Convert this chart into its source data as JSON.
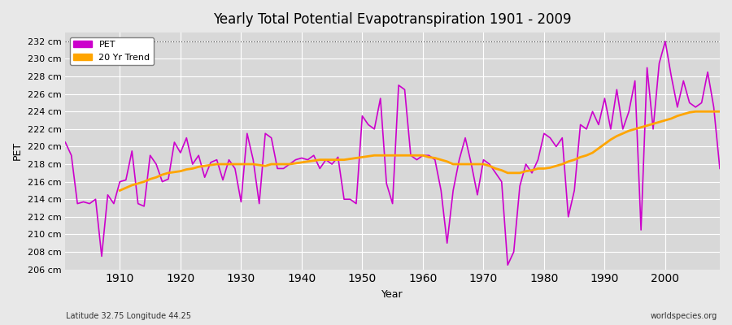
{
  "title": "Yearly Total Potential Evapotranspiration 1901 - 2009",
  "xlabel": "Year",
  "ylabel": "PET",
  "subtitle": "Latitude 32.75 Longitude 44.25",
  "watermark": "worldspecies.org",
  "ylim": [
    206,
    233
  ],
  "yticks": [
    206,
    208,
    210,
    212,
    214,
    216,
    218,
    220,
    222,
    224,
    226,
    228,
    230,
    232
  ],
  "ytick_labels": [
    "206 cm",
    "208 cm",
    "210 cm",
    "212 cm",
    "214 cm",
    "216 cm",
    "218 cm",
    "220 cm",
    "222 cm",
    "224 cm",
    "226 cm",
    "228 cm",
    "230 cm",
    "232 cm"
  ],
  "xlim": [
    1901,
    2009
  ],
  "xticks": [
    1910,
    1920,
    1930,
    1940,
    1950,
    1960,
    1970,
    1980,
    1990,
    2000
  ],
  "pet_color": "#cc00cc",
  "trend_color": "#ffa500",
  "bg_color": "#e8e8e8",
  "plot_bg_color": "#d8d8d8",
  "hline_y": 232,
  "hline_color": "#555555",
  "years": [
    1901,
    1902,
    1903,
    1904,
    1905,
    1906,
    1907,
    1908,
    1909,
    1910,
    1911,
    1912,
    1913,
    1914,
    1915,
    1916,
    1917,
    1918,
    1919,
    1920,
    1921,
    1922,
    1923,
    1924,
    1925,
    1926,
    1927,
    1928,
    1929,
    1930,
    1931,
    1932,
    1933,
    1934,
    1935,
    1936,
    1937,
    1938,
    1939,
    1940,
    1941,
    1942,
    1943,
    1944,
    1945,
    1946,
    1947,
    1948,
    1949,
    1950,
    1951,
    1952,
    1953,
    1954,
    1955,
    1956,
    1957,
    1958,
    1959,
    1960,
    1961,
    1962,
    1963,
    1964,
    1965,
    1966,
    1967,
    1968,
    1969,
    1970,
    1971,
    1972,
    1973,
    1974,
    1975,
    1976,
    1977,
    1978,
    1979,
    1980,
    1981,
    1982,
    1983,
    1984,
    1985,
    1986,
    1987,
    1988,
    1989,
    1990,
    1991,
    1992,
    1993,
    1994,
    1995,
    1996,
    1997,
    1998,
    1999,
    2000,
    2001,
    2002,
    2003,
    2004,
    2005,
    2006,
    2007,
    2008,
    2009
  ],
  "pet_values": [
    220.5,
    219.0,
    213.5,
    213.7,
    213.5,
    214.0,
    207.5,
    214.5,
    213.5,
    216.0,
    216.2,
    219.5,
    213.5,
    213.2,
    219.0,
    218.0,
    216.0,
    216.3,
    220.5,
    219.3,
    221.0,
    218.0,
    219.0,
    216.5,
    218.2,
    218.5,
    216.2,
    218.5,
    217.5,
    213.7,
    221.5,
    218.5,
    213.5,
    221.5,
    221.0,
    217.5,
    217.5,
    218.0,
    218.5,
    218.7,
    218.5,
    219.0,
    217.5,
    218.5,
    218.0,
    218.8,
    214.0,
    214.0,
    213.5,
    223.5,
    222.5,
    222.0,
    225.5,
    215.8,
    213.5,
    227.0,
    226.5,
    219.0,
    218.5,
    219.0,
    219.0,
    218.5,
    215.0,
    209.0,
    215.0,
    218.5,
    221.0,
    218.0,
    214.5,
    218.5,
    218.0,
    217.0,
    216.0,
    206.5,
    208.0,
    215.5,
    218.0,
    217.0,
    218.5,
    221.5,
    221.0,
    220.0,
    221.0,
    212.0,
    215.0,
    222.5,
    222.0,
    224.0,
    222.5,
    225.5,
    222.0,
    226.5,
    222.0,
    224.0,
    227.5,
    210.5,
    229.0,
    222.0,
    229.5,
    232.0,
    228.0,
    224.5,
    227.5,
    225.0,
    224.5,
    225.0,
    228.5,
    224.5,
    217.5
  ],
  "trend_years": [
    1910,
    1911,
    1912,
    1913,
    1914,
    1915,
    1916,
    1917,
    1918,
    1919,
    1920,
    1921,
    1922,
    1923,
    1924,
    1925,
    1926,
    1927,
    1928,
    1929,
    1930,
    1931,
    1932,
    1933,
    1934,
    1935,
    1936,
    1937,
    1938,
    1939,
    1940,
    1941,
    1942,
    1943,
    1944,
    1945,
    1946,
    1947,
    1948,
    1949,
    1950,
    1951,
    1952,
    1953,
    1954,
    1955,
    1956,
    1957,
    1958,
    1959,
    1960,
    1961,
    1962,
    1963,
    1964,
    1965,
    1966,
    1967,
    1968,
    1969,
    1970,
    1971,
    1972,
    1973,
    1974,
    1975,
    1976,
    1977,
    1978,
    1979,
    1980,
    1981,
    1982,
    1983,
    1984,
    1985,
    1986,
    1987,
    1988,
    1989,
    1990,
    1991,
    1992,
    1993,
    1994,
    1995,
    1996,
    1997,
    1998,
    1999,
    2000,
    2001,
    2002,
    2003,
    2004,
    2005,
    2006,
    2007,
    2008,
    2009
  ],
  "trend_values": [
    215.0,
    215.3,
    215.6,
    215.8,
    216.0,
    216.3,
    216.5,
    216.8,
    217.0,
    217.1,
    217.2,
    217.4,
    217.5,
    217.7,
    217.8,
    217.9,
    218.0,
    218.0,
    218.0,
    218.0,
    218.0,
    218.0,
    218.0,
    217.9,
    217.8,
    218.0,
    218.0,
    218.0,
    218.0,
    218.1,
    218.2,
    218.3,
    218.4,
    218.5,
    218.5,
    218.5,
    218.5,
    218.5,
    218.6,
    218.7,
    218.8,
    218.9,
    219.0,
    219.0,
    219.0,
    219.0,
    219.0,
    219.0,
    219.0,
    219.0,
    219.0,
    218.8,
    218.7,
    218.5,
    218.3,
    218.0,
    218.0,
    218.0,
    218.0,
    218.0,
    218.0,
    217.8,
    217.5,
    217.3,
    217.0,
    217.0,
    217.0,
    217.2,
    217.3,
    217.5,
    217.5,
    217.6,
    217.8,
    218.0,
    218.3,
    218.5,
    218.8,
    219.0,
    219.3,
    219.8,
    220.3,
    220.8,
    221.2,
    221.5,
    221.8,
    222.0,
    222.2,
    222.4,
    222.6,
    222.8,
    223.0,
    223.2,
    223.5,
    223.7,
    223.9,
    224.0,
    224.0,
    224.0,
    224.0,
    224.0
  ]
}
